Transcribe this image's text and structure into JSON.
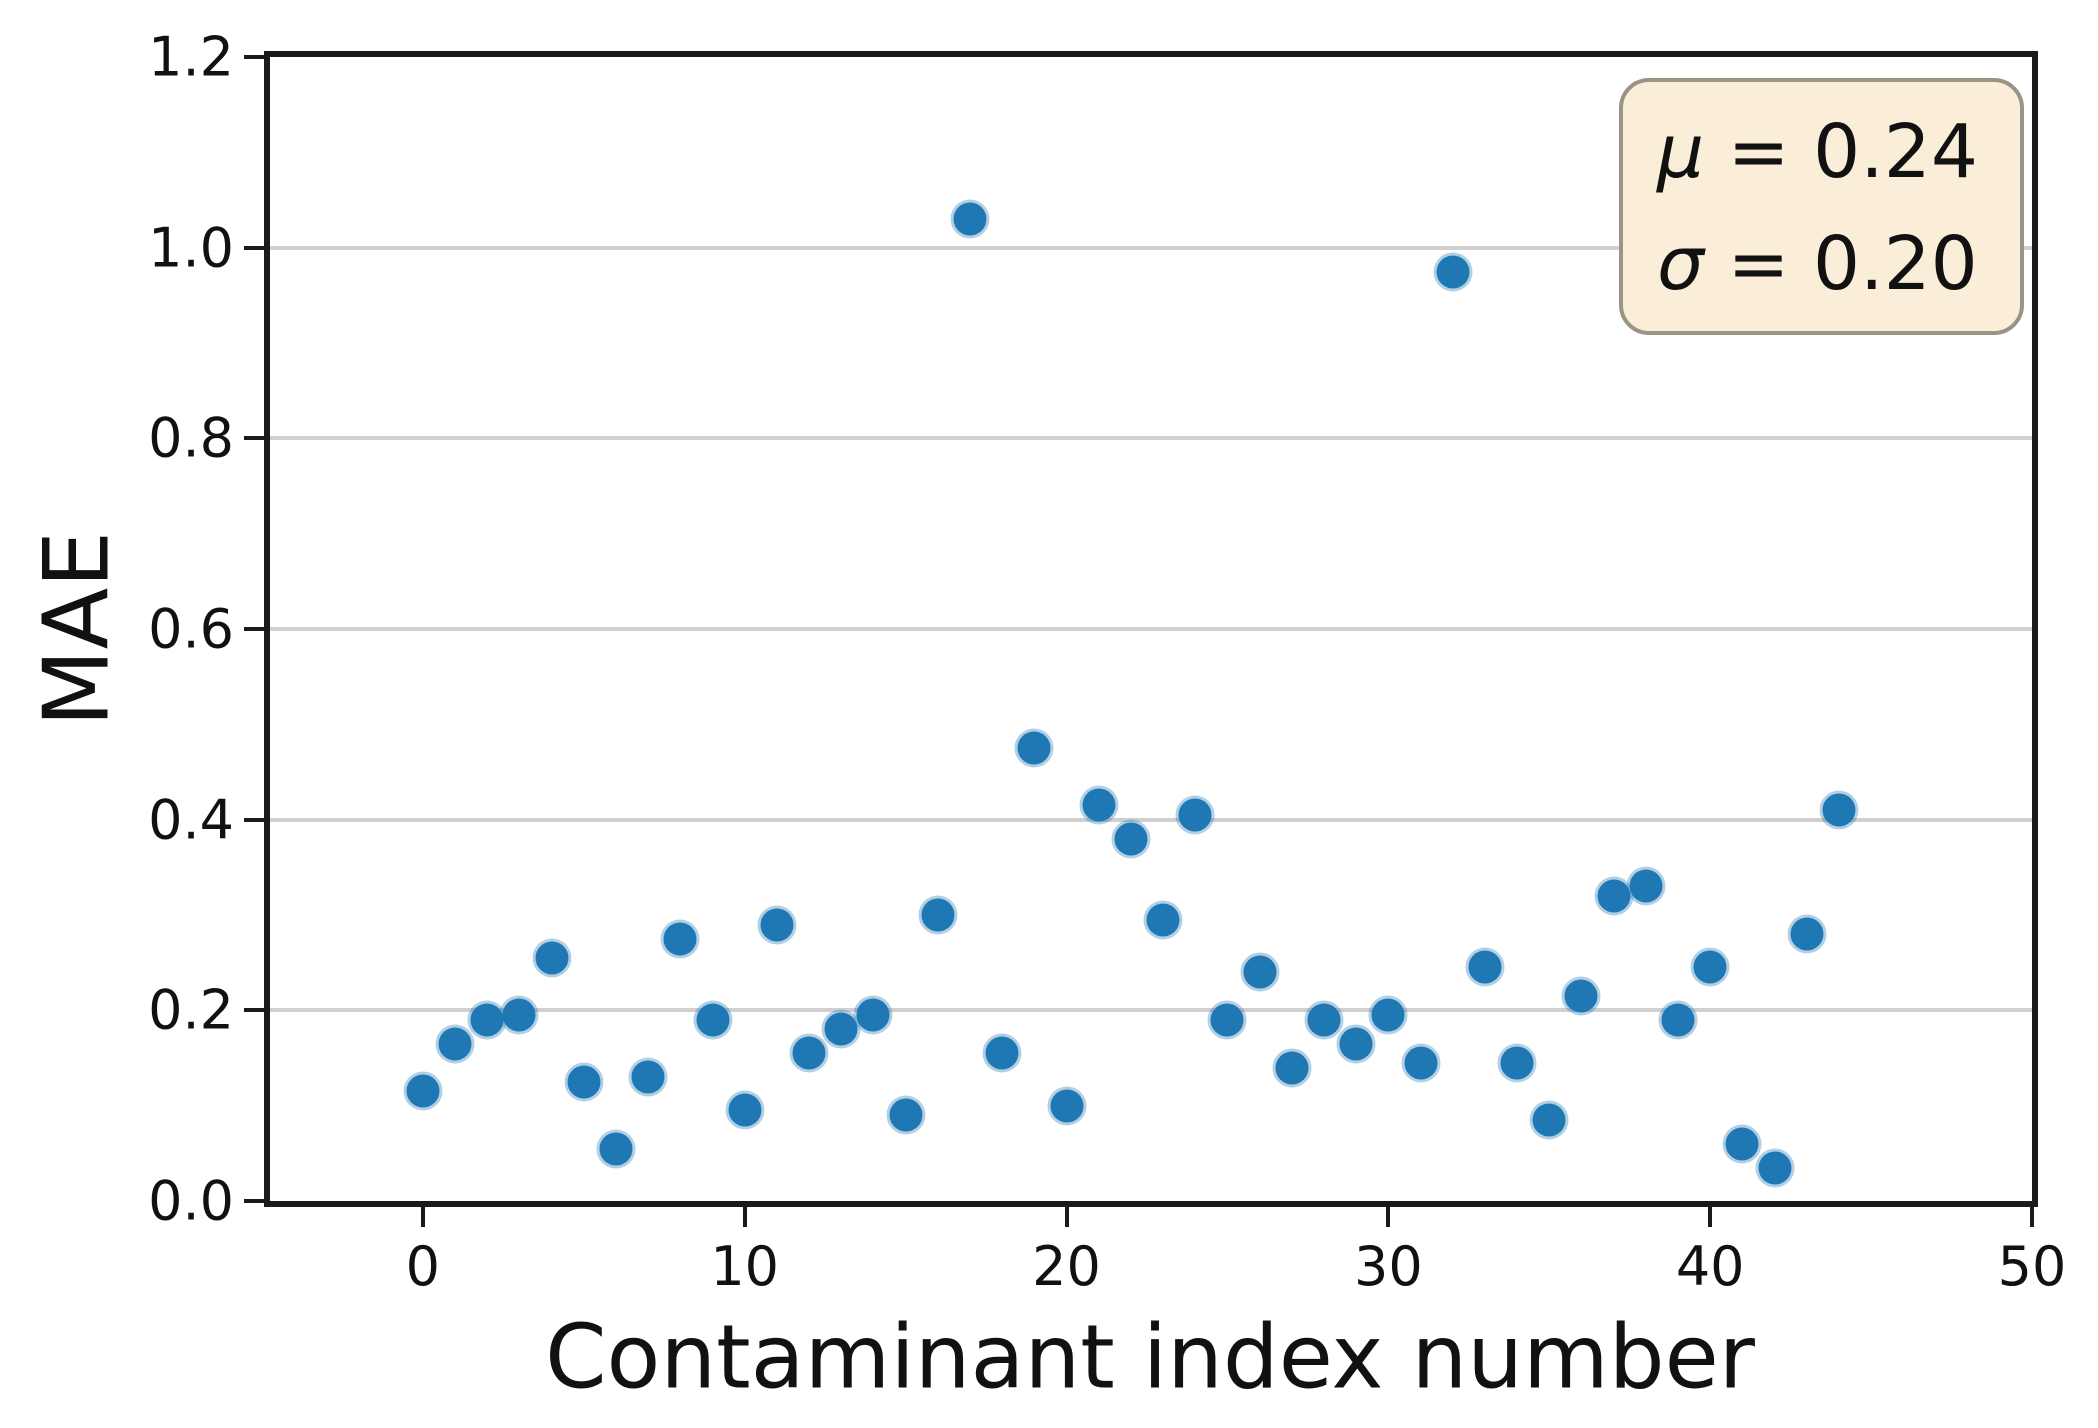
{
  "figure": {
    "background": "#ffffff"
  },
  "chart_data": {
    "type": "scatter",
    "title": "",
    "xlabel": "Contaminant index number",
    "ylabel": "MAE",
    "xlim": [
      -4.75,
      50
    ],
    "ylim": [
      0,
      1.2
    ],
    "grid": "horizontal",
    "gridline_values": [
      0.2,
      0.4,
      0.6,
      0.8,
      1.0
    ],
    "x_ticks": [
      0,
      10,
      20,
      30,
      40,
      50
    ],
    "x_tick_labels": [
      "0",
      "10",
      "20",
      "30",
      "40",
      "50"
    ],
    "y_ticks": [
      0.0,
      0.2,
      0.4,
      0.6,
      0.8,
      1.0,
      1.2
    ],
    "y_tick_labels": [
      "0.0",
      "0.2",
      "0.4",
      "0.6",
      "0.8",
      "1.0",
      "1.2"
    ],
    "marker_color": "#1f77b4",
    "gridline_color": "#d0d0d0",
    "x": [
      0,
      1,
      2,
      3,
      4,
      5,
      6,
      7,
      8,
      9,
      10,
      11,
      12,
      13,
      14,
      15,
      16,
      17,
      18,
      19,
      20,
      21,
      22,
      23,
      24,
      25,
      26,
      27,
      28,
      29,
      30,
      31,
      32,
      33,
      34,
      35,
      36,
      37,
      38,
      39,
      40,
      41,
      42,
      43,
      44
    ],
    "y": [
      0.115,
      0.165,
      0.19,
      0.195,
      0.255,
      0.125,
      0.055,
      0.13,
      0.275,
      0.19,
      0.095,
      0.29,
      0.155,
      0.18,
      0.195,
      0.09,
      0.3,
      1.03,
      0.155,
      0.475,
      0.1,
      0.415,
      0.38,
      0.295,
      0.405,
      0.19,
      0.24,
      0.14,
      0.19,
      0.165,
      0.195,
      0.145,
      0.975,
      0.245,
      0.145,
      0.085,
      0.215,
      0.32,
      0.33,
      0.19,
      0.245,
      0.06,
      0.035,
      0.28,
      0.41
    ],
    "annotation_box": {
      "position": "top-right",
      "background": "#faeed9",
      "border_color": "#9b9383",
      "lines": [
        {
          "symbol": "μ",
          "rest": "= 0.24"
        },
        {
          "symbol": "σ",
          "rest": "= 0.20"
        }
      ]
    }
  }
}
